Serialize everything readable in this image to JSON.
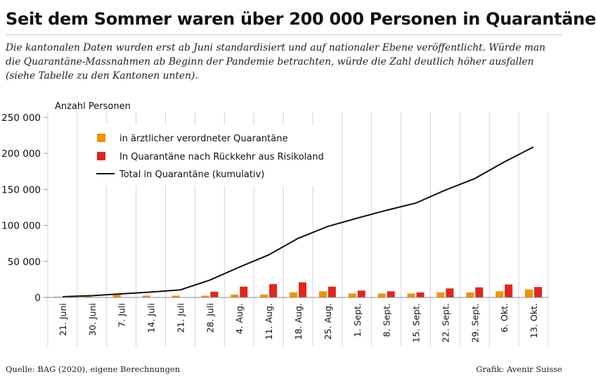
{
  "header": {
    "title": "Seit dem Sommer waren über 200 000 Personen in Quarantäne",
    "subtitle": "Die kantonalen Daten wurden erst ab Juni standardisiert und auf nationaler Ebene veröffentlicht. Würde man die Quarantäne-Massnahmen ab Beginn der Pandemie betrachten, würde die Zahl deutlich höher ausfallen (siehe Tabelle zu den Kantonen unten)."
  },
  "footer": {
    "source": "Quelle: BAG (2020), eigene Berechnungen",
    "credit": "Grafik: Avenir Suisse"
  },
  "chart_data": {
    "type": "bar",
    "ylabel": "Anzahl Personen",
    "ylim": [
      0,
      250000
    ],
    "yticks": [
      0,
      50000,
      100000,
      150000,
      200000,
      250000
    ],
    "ytick_labels": [
      "0",
      "50 000",
      "100 000",
      "150 000",
      "200 000",
      "250 000"
    ],
    "categories": [
      "21. Juni",
      "30. Juni",
      "7. Juli",
      "14. Juli",
      "21. Juli",
      "28. Juli",
      "4. Aug.",
      "11. Aug.",
      "18. Aug.",
      "25. Aug.",
      "1. Sept.",
      "8. Sept.",
      "15. Sept.",
      "22. Sept.",
      "29. Sept.",
      "6. Okt.",
      "13. Okt."
    ],
    "grid": "vertical",
    "legend_position": "top-left",
    "series": [
      {
        "name": "in ärztlicher verordneter Quarantäne",
        "type": "bar",
        "color": "#f39200",
        "values": [
          1000,
          1500,
          4500,
          2500,
          2500,
          2500,
          4000,
          4000,
          7000,
          8500,
          5500,
          5500,
          5500,
          7000,
          7000,
          8500,
          11000
        ]
      },
      {
        "name": "In Quarantäne nach Rückkehr aus Risikoland",
        "type": "bar",
        "color": "#e1261c",
        "values": [
          0,
          0,
          0,
          0,
          0,
          8000,
          15000,
          18500,
          21000,
          15000,
          9500,
          8500,
          7000,
          12500,
          14000,
          18000,
          14500
        ]
      },
      {
        "name": "Total in Quarantäne (kumulativ)",
        "type": "line",
        "color": "#111111",
        "values": [
          1000,
          2500,
          5000,
          7500,
          10500,
          24000,
          42000,
          59000,
          82000,
          98500,
          110000,
          121000,
          131000,
          149000,
          165000,
          188000,
          209000
        ]
      }
    ]
  }
}
